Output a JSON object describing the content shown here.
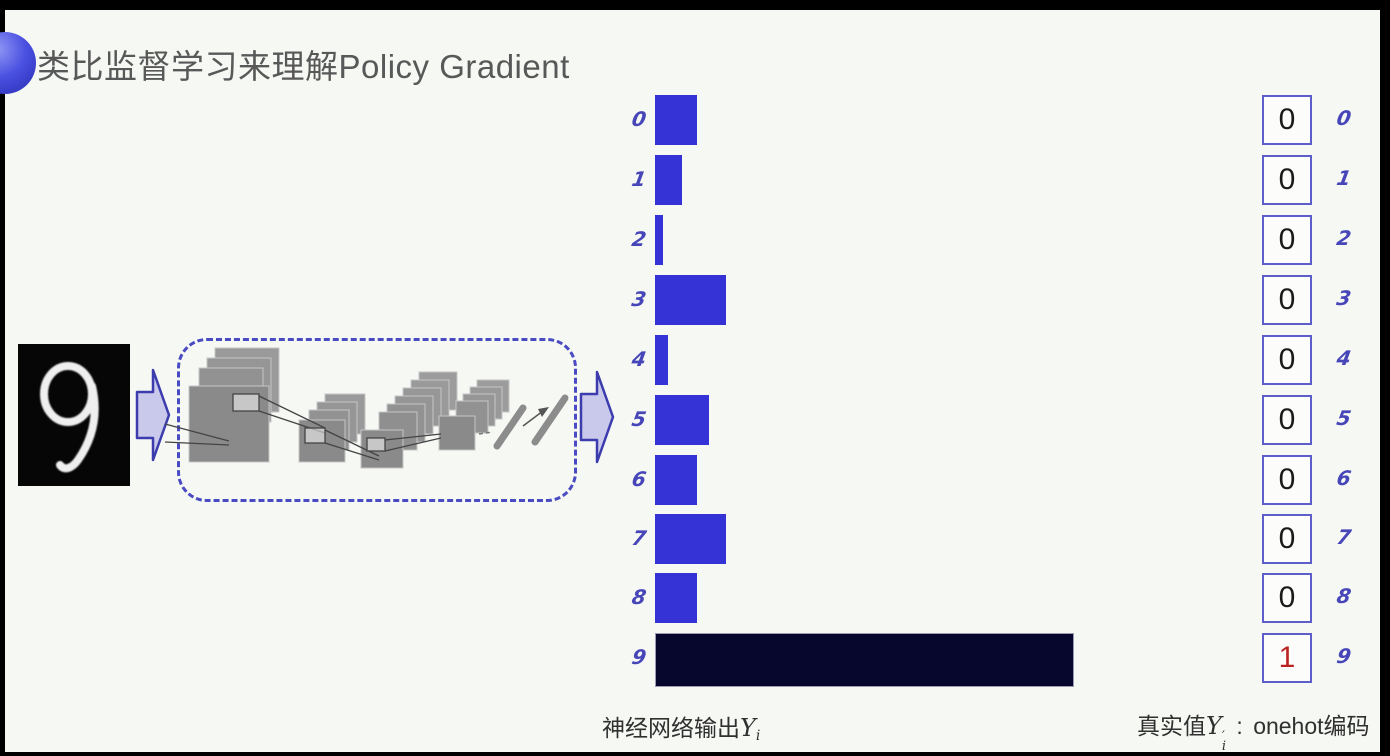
{
  "title": "类比监督学习来理解Policy Gradient",
  "input_image": {
    "digit": "9",
    "description": "handwritten digit on black background"
  },
  "chart_data": {
    "type": "bar",
    "orientation": "horizontal",
    "categories": [
      "0",
      "1",
      "2",
      "3",
      "4",
      "5",
      "6",
      "7",
      "8",
      "9"
    ],
    "values": [
      0.1,
      0.065,
      0.02,
      0.17,
      0.03,
      0.13,
      0.1,
      0.17,
      0.1,
      1.0
    ],
    "value_note": "relative bar length, longest bar (digit 9) = 1.0",
    "title": "",
    "xlabel": "神经网络输出Yi",
    "bar_color": "#3533d5",
    "highlight_index": 9,
    "highlight_color": "#07072e",
    "label_color": "#4646b8",
    "grid": false
  },
  "onehot": {
    "labels": [
      "0",
      "1",
      "2",
      "3",
      "4",
      "5",
      "6",
      "7",
      "8",
      "9"
    ],
    "values": [
      "0",
      "0",
      "0",
      "0",
      "0",
      "0",
      "0",
      "0",
      "0",
      "1"
    ],
    "highlight_index": 9,
    "value_color": "#1a1a1a",
    "highlight_value_color": "#bb2222",
    "box_border_color": "#5e5ecb"
  },
  "captions": {
    "output": {
      "prefix": "神经网络输出",
      "symbol": "Y",
      "sub": "i"
    },
    "truth": {
      "prefix": "真实值",
      "symbol": "Y",
      "sub": "i",
      "prime": "′",
      "sep": " : ",
      "suffix": "onehot编码"
    }
  },
  "colors": {
    "accent_blue": "#3533d5",
    "sphere_blue": "#4a50e0",
    "title_gray": "#585858",
    "dashed_box_border": "#4a4ac2",
    "arrow_fill": "#c9c9ec",
    "arrow_border": "#3c3cae"
  }
}
